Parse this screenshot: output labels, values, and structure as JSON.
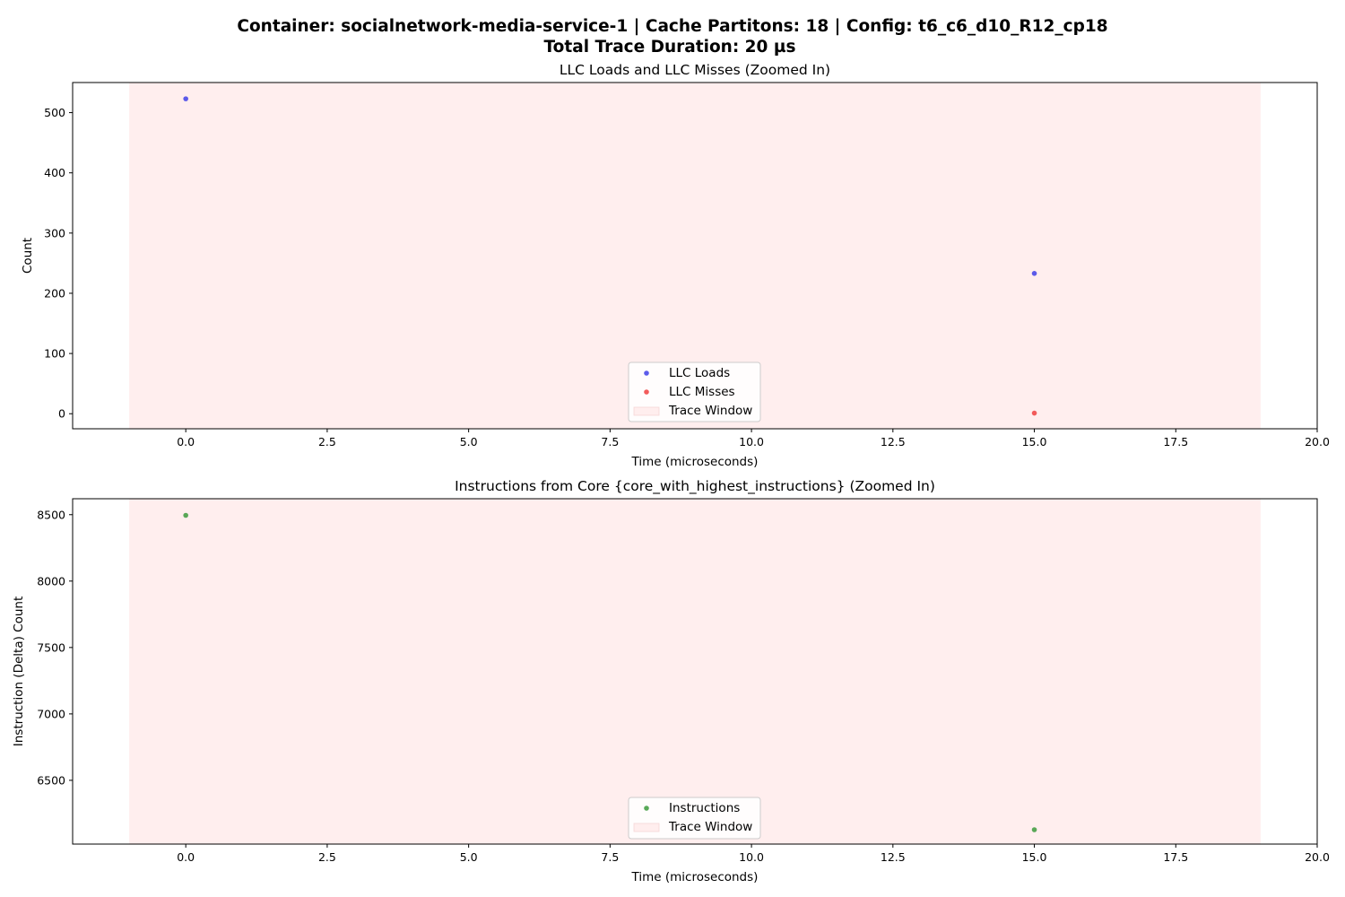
{
  "figure": {
    "title_line1": "Container: socialnetwork-media-service-1 | Cache Partitons: 18 | Config: t6_c6_d10_R12_cp18",
    "title_line2": "Total Trace Duration: 20 µs"
  },
  "chart_data": [
    {
      "type": "scatter",
      "title": "LLC Loads and LLC Misses (Zoomed In)",
      "xlabel": "Time (microseconds)",
      "ylabel": "Count",
      "xlim": [
        -2.0,
        20.0
      ],
      "ylim": [
        -25,
        550
      ],
      "xticks": [
        0.0,
        2.5,
        5.0,
        7.5,
        10.0,
        12.5,
        15.0,
        17.5,
        20.0
      ],
      "xtick_labels": [
        "0.0",
        "2.5",
        "5.0",
        "7.5",
        "10.0",
        "12.5",
        "15.0",
        "17.5",
        "20.0"
      ],
      "yticks": [
        0,
        100,
        200,
        300,
        400,
        500
      ],
      "ytick_labels": [
        "0",
        "100",
        "200",
        "300",
        "400",
        "500"
      ],
      "trace_window": {
        "x_start": -1.0,
        "x_end": 19.0,
        "color": "#ffeeee",
        "label": "Trace Window"
      },
      "series": [
        {
          "name": "LLC Loads",
          "color": "#3f3fe8",
          "points": [
            {
              "x": 0.0,
              "y": 523
            },
            {
              "x": 15.0,
              "y": 233
            }
          ]
        },
        {
          "name": "LLC Misses",
          "color": "#f04040",
          "points": [
            {
              "x": 15.0,
              "y": 1
            }
          ]
        }
      ],
      "legend_position": "lower center",
      "grid": false
    },
    {
      "type": "scatter",
      "title": "Instructions from Core {core_with_highest_instructions} (Zoomed In)",
      "xlabel": "Time (microseconds)",
      "ylabel": "Instruction (Delta) Count",
      "xlim": [
        -2.0,
        20.0
      ],
      "ylim": [
        6020,
        8620
      ],
      "xticks": [
        0.0,
        2.5,
        5.0,
        7.5,
        10.0,
        12.5,
        15.0,
        17.5,
        20.0
      ],
      "xtick_labels": [
        "0.0",
        "2.5",
        "5.0",
        "7.5",
        "10.0",
        "12.5",
        "15.0",
        "17.5",
        "20.0"
      ],
      "yticks": [
        6500,
        7000,
        7500,
        8000,
        8500
      ],
      "ytick_labels": [
        "6500",
        "7000",
        "7500",
        "8000",
        "8500"
      ],
      "trace_window": {
        "x_start": -1.0,
        "x_end": 19.0,
        "color": "#ffeeee",
        "label": "Trace Window"
      },
      "series": [
        {
          "name": "Instructions",
          "color": "#3c9a3c",
          "points": [
            {
              "x": 0.0,
              "y": 8495
            },
            {
              "x": 15.0,
              "y": 6128
            }
          ]
        }
      ],
      "legend_position": "lower center",
      "grid": false
    }
  ]
}
